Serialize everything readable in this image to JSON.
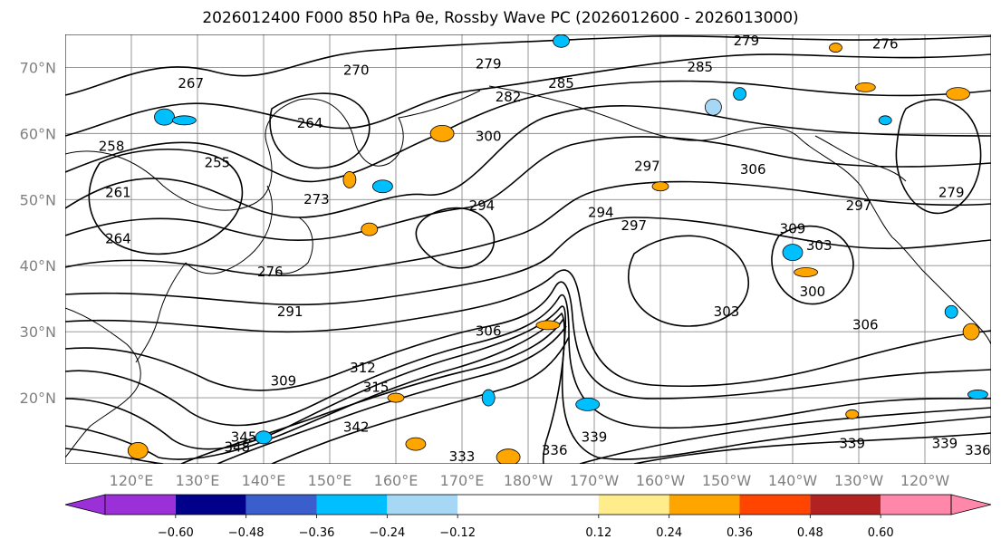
{
  "chart_data": {
    "type": "contour-map",
    "title": "2026012400 F000 850 hPa θe, Rossby Wave PC (2026012600 - 2026013000)",
    "lon_range": [
      110,
      250
    ],
    "lat_range": [
      10,
      75
    ],
    "x_ticks": [
      {
        "lon": 120,
        "label": "120°E"
      },
      {
        "lon": 130,
        "label": "130°E"
      },
      {
        "lon": 140,
        "label": "140°E"
      },
      {
        "lon": 150,
        "label": "150°E"
      },
      {
        "lon": 160,
        "label": "160°E"
      },
      {
        "lon": 170,
        "label": "170°E"
      },
      {
        "lon": 180,
        "label": "180°W"
      },
      {
        "lon": 190,
        "label": "170°W"
      },
      {
        "lon": 200,
        "label": "160°W"
      },
      {
        "lon": 210,
        "label": "150°W"
      },
      {
        "lon": 220,
        "label": "140°W"
      },
      {
        "lon": 230,
        "label": "130°W"
      },
      {
        "lon": 240,
        "label": "120°W"
      }
    ],
    "y_ticks": [
      {
        "lat": 20,
        "label": "20°N"
      },
      {
        "lat": 30,
        "label": "30°N"
      },
      {
        "lat": 40,
        "label": "40°N"
      },
      {
        "lat": 50,
        "label": "50°N"
      },
      {
        "lat": 60,
        "label": "60°N"
      },
      {
        "lat": 70,
        "label": "70°N"
      }
    ],
    "contour_labels": [
      {
        "text": "267",
        "lon": 129,
        "lat": 67.5
      },
      {
        "text": "270",
        "lon": 154,
        "lat": 69.5
      },
      {
        "text": "279",
        "lon": 174,
        "lat": 70.5
      },
      {
        "text": "279",
        "lon": 213,
        "lat": 74
      },
      {
        "text": "276",
        "lon": 234,
        "lat": 73.5
      },
      {
        "text": "264",
        "lon": 147,
        "lat": 61.5
      },
      {
        "text": "282",
        "lon": 177,
        "lat": 65.5
      },
      {
        "text": "285",
        "lon": 185,
        "lat": 67.5
      },
      {
        "text": "285",
        "lon": 206,
        "lat": 70
      },
      {
        "text": "258",
        "lon": 117,
        "lat": 58
      },
      {
        "text": "255",
        "lon": 133,
        "lat": 55.5
      },
      {
        "text": "300",
        "lon": 174,
        "lat": 59.5
      },
      {
        "text": "297",
        "lon": 198,
        "lat": 55
      },
      {
        "text": "306",
        "lon": 214,
        "lat": 54.5
      },
      {
        "text": "261",
        "lon": 118,
        "lat": 51
      },
      {
        "text": "273",
        "lon": 148,
        "lat": 50
      },
      {
        "text": "294",
        "lon": 173,
        "lat": 49
      },
      {
        "text": "294",
        "lon": 191,
        "lat": 48
      },
      {
        "text": "297",
        "lon": 196,
        "lat": 46
      },
      {
        "text": "297",
        "lon": 230,
        "lat": 49
      },
      {
        "text": "279",
        "lon": 244,
        "lat": 51
      },
      {
        "text": "264",
        "lon": 118,
        "lat": 44
      },
      {
        "text": "309",
        "lon": 220,
        "lat": 45.5
      },
      {
        "text": "303",
        "lon": 224,
        "lat": 43
      },
      {
        "text": "276",
        "lon": 141,
        "lat": 39
      },
      {
        "text": "303",
        "lon": 210,
        "lat": 33
      },
      {
        "text": "300",
        "lon": 223,
        "lat": 36
      },
      {
        "text": "291",
        "lon": 144,
        "lat": 33
      },
      {
        "text": "306",
        "lon": 174,
        "lat": 30
      },
      {
        "text": "306",
        "lon": 231,
        "lat": 31
      },
      {
        "text": "312",
        "lon": 155,
        "lat": 24.5
      },
      {
        "text": "309",
        "lon": 143,
        "lat": 22.5
      },
      {
        "text": "315",
        "lon": 157,
        "lat": 21.5
      },
      {
        "text": "342",
        "lon": 154,
        "lat": 15.5
      },
      {
        "text": "345",
        "lon": 137,
        "lat": 14
      },
      {
        "text": "348",
        "lon": 136,
        "lat": 12.5
      },
      {
        "text": "339",
        "lon": 190,
        "lat": 14
      },
      {
        "text": "336",
        "lon": 184,
        "lat": 12
      },
      {
        "text": "333",
        "lon": 170,
        "lat": 11
      },
      {
        "text": "339",
        "lon": 229,
        "lat": 13
      },
      {
        "text": "339",
        "lon": 243,
        "lat": 13
      },
      {
        "text": "336",
        "lon": 248,
        "lat": 12
      }
    ],
    "anomaly_patches": [
      {
        "level": 0.3,
        "lon": 226.5,
        "lat": 73
      },
      {
        "level": -0.3,
        "lon": 185,
        "lat": 74
      },
      {
        "level": -0.3,
        "lon": 125,
        "lat": 62.5
      },
      {
        "level": -0.3,
        "lon": 128,
        "lat": 62
      },
      {
        "level": -0.3,
        "lon": 212,
        "lat": 66
      },
      {
        "level": -0.2,
        "lon": 208,
        "lat": 64
      },
      {
        "level": 0.3,
        "lon": 231,
        "lat": 67
      },
      {
        "level": 0.3,
        "lon": 245,
        "lat": 66
      },
      {
        "level": 0.3,
        "lon": 153,
        "lat": 53
      },
      {
        "level": 0.3,
        "lon": 200,
        "lat": 52
      },
      {
        "level": -0.3,
        "lon": 158,
        "lat": 52
      },
      {
        "level": 0.3,
        "lon": 167,
        "lat": 60
      },
      {
        "level": -0.3,
        "lon": 234,
        "lat": 62
      },
      {
        "level": 0.3,
        "lon": 156,
        "lat": 45.5
      },
      {
        "level": -0.3,
        "lon": 220,
        "lat": 42
      },
      {
        "level": 0.3,
        "lon": 222,
        "lat": 39
      },
      {
        "level": -0.3,
        "lon": 244,
        "lat": 33
      },
      {
        "level": 0.3,
        "lon": 247,
        "lat": 30
      },
      {
        "level": -0.3,
        "lon": 248,
        "lat": 20.5
      },
      {
        "level": -0.3,
        "lon": 189,
        "lat": 19
      },
      {
        "level": -0.3,
        "lon": 174,
        "lat": 20
      },
      {
        "level": 0.3,
        "lon": 160,
        "lat": 20
      },
      {
        "level": 0.3,
        "lon": 163,
        "lat": 13
      },
      {
        "level": 0.3,
        "lon": 177,
        "lat": 11
      },
      {
        "level": 0.3,
        "lon": 229,
        "lat": 17.5
      },
      {
        "level": -0.3,
        "lon": 140,
        "lat": 14
      },
      {
        "level": 0.3,
        "lon": 121,
        "lat": 12
      },
      {
        "level": 0.3,
        "lon": 183,
        "lat": 31
      }
    ],
    "colorbar": {
      "bounds": [
        -0.72,
        -0.6,
        -0.48,
        -0.36,
        -0.24,
        -0.12,
        0.12,
        0.24,
        0.36,
        0.48,
        0.6,
        0.72
      ],
      "colors": [
        "#9b30d9",
        "#00008b",
        "#3a5fcd",
        "#00bfff",
        "#a6d8f5",
        "#ffffff",
        "#ffec8b",
        "#ffa500",
        "#ff4500",
        "#b22222",
        "#ff88aa"
      ],
      "under_color": "#9b30d9",
      "over_color": "#ff88aa",
      "tick_values": [
        -0.6,
        -0.48,
        -0.36,
        -0.24,
        -0.12,
        0.12,
        0.24,
        0.36,
        0.48,
        0.6
      ],
      "tick_labels": [
        "−0.60",
        "−0.48",
        "−0.36",
        "−0.24",
        "−0.12",
        "0.12",
        "0.24",
        "0.36",
        "0.48",
        "0.60"
      ],
      "extend": "both"
    }
  }
}
